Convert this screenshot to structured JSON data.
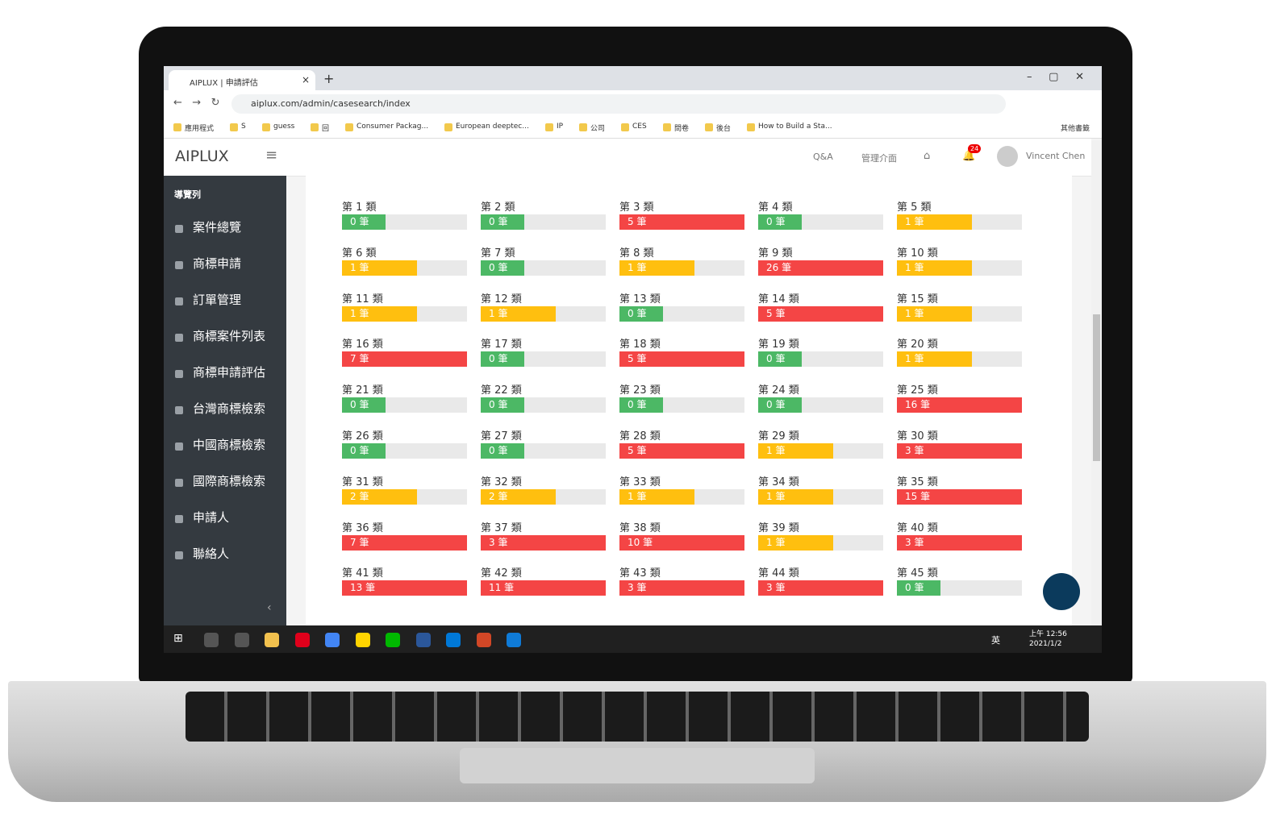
{
  "browser": {
    "tab_title": "AIPLUX | 申請評估",
    "url": "aiplux.com/admin/casesearch/index",
    "bookmarks": [
      "應用程式",
      "S",
      "guess",
      "回",
      "Consumer Packag...",
      "European deeptec...",
      "IP",
      "公司",
      "CES",
      "問卷",
      "後台",
      "How to Build a Sta..."
    ],
    "other_bookmarks": "其他書籤"
  },
  "header": {
    "logo": "AIPLUX",
    "links": [
      "Q&A",
      "管理介面"
    ],
    "notification_count": "24",
    "user": "Vincent Chen"
  },
  "sidebar": {
    "title": "導覽列",
    "items": [
      "案件總覽",
      "商標申請",
      "訂單管理",
      "商標案件列表",
      "商標申請評估",
      "台灣商標檢索",
      "中國商標檢索",
      "國際商標檢索",
      "申請人",
      "聯絡人"
    ]
  },
  "classes": [
    {
      "label": "第 1 類",
      "count": "0 筆",
      "color": "#4cb865"
    },
    {
      "label": "第 2 類",
      "count": "0 筆",
      "color": "#4cb865"
    },
    {
      "label": "第 3 類",
      "count": "5 筆",
      "color": "#f44545"
    },
    {
      "label": "第 4 類",
      "count": "0 筆",
      "color": "#4cb865"
    },
    {
      "label": "第 5 類",
      "count": "1 筆",
      "color": "#ffbf0f"
    },
    {
      "label": "第 6 類",
      "count": "1 筆",
      "color": "#ffbf0f"
    },
    {
      "label": "第 7 類",
      "count": "0 筆",
      "color": "#4cb865"
    },
    {
      "label": "第 8 類",
      "count": "1 筆",
      "color": "#ffbf0f"
    },
    {
      "label": "第 9 類",
      "count": "26 筆",
      "color": "#f44545"
    },
    {
      "label": "第 10 類",
      "count": "1 筆",
      "color": "#ffbf0f"
    },
    {
      "label": "第 11 類",
      "count": "1 筆",
      "color": "#ffbf0f"
    },
    {
      "label": "第 12 類",
      "count": "1 筆",
      "color": "#ffbf0f"
    },
    {
      "label": "第 13 類",
      "count": "0 筆",
      "color": "#4cb865"
    },
    {
      "label": "第 14 類",
      "count": "5 筆",
      "color": "#f44545"
    },
    {
      "label": "第 15 類",
      "count": "1 筆",
      "color": "#ffbf0f"
    },
    {
      "label": "第 16 類",
      "count": "7 筆",
      "color": "#f44545"
    },
    {
      "label": "第 17 類",
      "count": "0 筆",
      "color": "#4cb865"
    },
    {
      "label": "第 18 類",
      "count": "5 筆",
      "color": "#f44545"
    },
    {
      "label": "第 19 類",
      "count": "0 筆",
      "color": "#4cb865"
    },
    {
      "label": "第 20 類",
      "count": "1 筆",
      "color": "#ffbf0f"
    },
    {
      "label": "第 21 類",
      "count": "0 筆",
      "color": "#4cb865"
    },
    {
      "label": "第 22 類",
      "count": "0 筆",
      "color": "#4cb865"
    },
    {
      "label": "第 23 類",
      "count": "0 筆",
      "color": "#4cb865"
    },
    {
      "label": "第 24 類",
      "count": "0 筆",
      "color": "#4cb865"
    },
    {
      "label": "第 25 類",
      "count": "16 筆",
      "color": "#f44545"
    },
    {
      "label": "第 26 類",
      "count": "0 筆",
      "color": "#4cb865"
    },
    {
      "label": "第 27 類",
      "count": "0 筆",
      "color": "#4cb865"
    },
    {
      "label": "第 28 類",
      "count": "5 筆",
      "color": "#f44545"
    },
    {
      "label": "第 29 類",
      "count": "1 筆",
      "color": "#ffbf0f"
    },
    {
      "label": "第 30 類",
      "count": "3 筆",
      "color": "#f44545"
    },
    {
      "label": "第 31 類",
      "count": "2 筆",
      "color": "#ffbf0f"
    },
    {
      "label": "第 32 類",
      "count": "2 筆",
      "color": "#ffbf0f"
    },
    {
      "label": "第 33 類",
      "count": "1 筆",
      "color": "#ffbf0f"
    },
    {
      "label": "第 34 類",
      "count": "1 筆",
      "color": "#ffbf0f"
    },
    {
      "label": "第 35 類",
      "count": "15 筆",
      "color": "#f44545"
    },
    {
      "label": "第 36 類",
      "count": "7 筆",
      "color": "#f44545"
    },
    {
      "label": "第 37 類",
      "count": "3 筆",
      "color": "#f44545"
    },
    {
      "label": "第 38 類",
      "count": "10 筆",
      "color": "#f44545"
    },
    {
      "label": "第 39 類",
      "count": "1 筆",
      "color": "#ffbf0f"
    },
    {
      "label": "第 40 類",
      "count": "3 筆",
      "color": "#f44545"
    },
    {
      "label": "第 41 類",
      "count": "13 筆",
      "color": "#f44545"
    },
    {
      "label": "第 42 類",
      "count": "11 筆",
      "color": "#f44545"
    },
    {
      "label": "第 43 類",
      "count": "3 筆",
      "color": "#f44545"
    },
    {
      "label": "第 44 類",
      "count": "3 筆",
      "color": "#f44545"
    },
    {
      "label": "第 45 類",
      "count": "0 筆",
      "color": "#4cb865"
    }
  ],
  "taskbar": {
    "lang": "英",
    "time": "上午 12:56",
    "date": "2021/1/2"
  }
}
